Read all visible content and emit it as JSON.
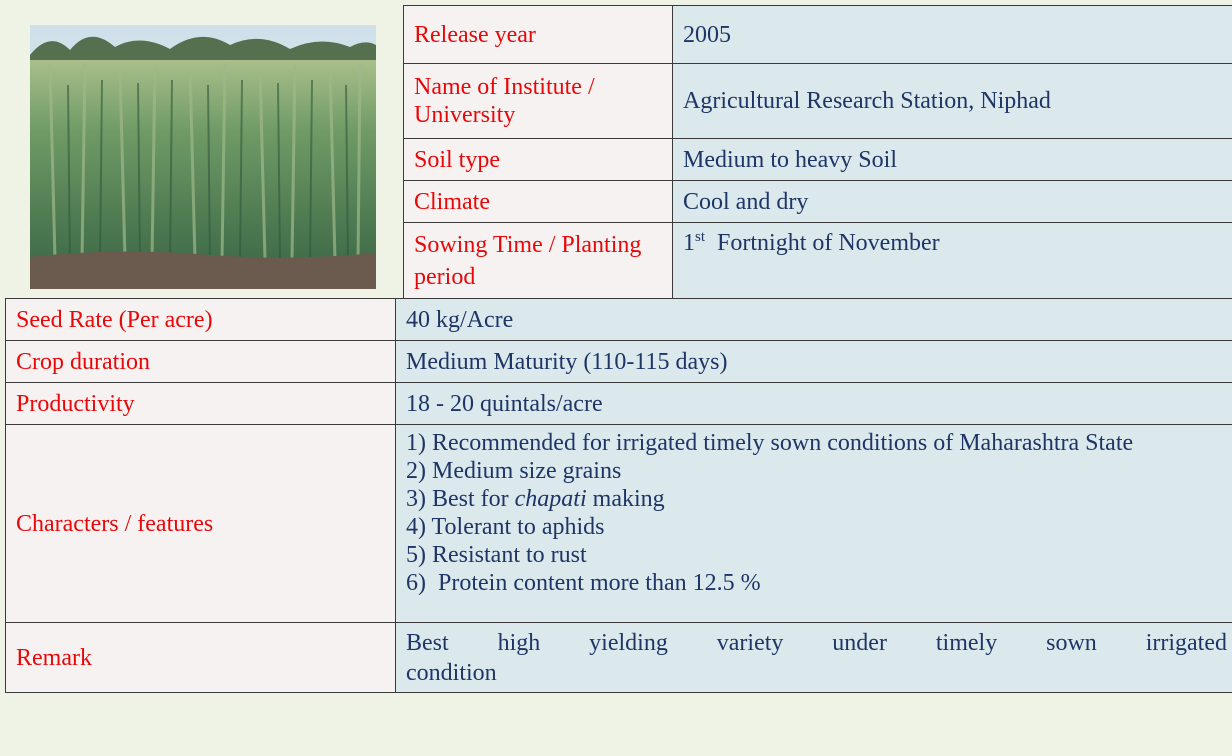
{
  "top_table": {
    "rows": [
      [
        "Release year",
        "2005"
      ],
      [
        "Name of Institute / University",
        "Agricultural Research Station, Niphad"
      ],
      [
        "Soil type",
        "Medium to heavy Soil"
      ],
      [
        "Climate",
        "Cool and dry"
      ],
      [
        "Sowing Time  /  Planting  period",
        {
          "number": "1",
          "suffix": "st",
          "text": "Fortnight of November"
        }
      ]
    ]
  },
  "bottom_table": {
    "seed_rate": [
      "Seed Rate  (Per acre)",
      "40 kg/Acre"
    ],
    "crop_duration": [
      "Crop duration",
      "Medium Maturity (110-115 days)"
    ],
    "productivity": [
      "Productivity",
      "18 - 20 quintals/acre"
    ],
    "features": {
      "label": "Characters / features",
      "items": [
        "1) Recommended for irrigated timely sown conditions of Maharashtra State",
        "2) Medium size grains",
        {
          "before": "3) Best for ",
          "italic": "chapati",
          "after": " making"
        },
        "4) Tolerant to aphids",
        "5) Resistant to rust",
        "6)  Protein content more than 12.5 %"
      ]
    },
    "remark": [
      "Remark",
      {
        "line1": "Best high yielding variety under timely sown irrigated",
        "line2": "condition"
      }
    ]
  }
}
